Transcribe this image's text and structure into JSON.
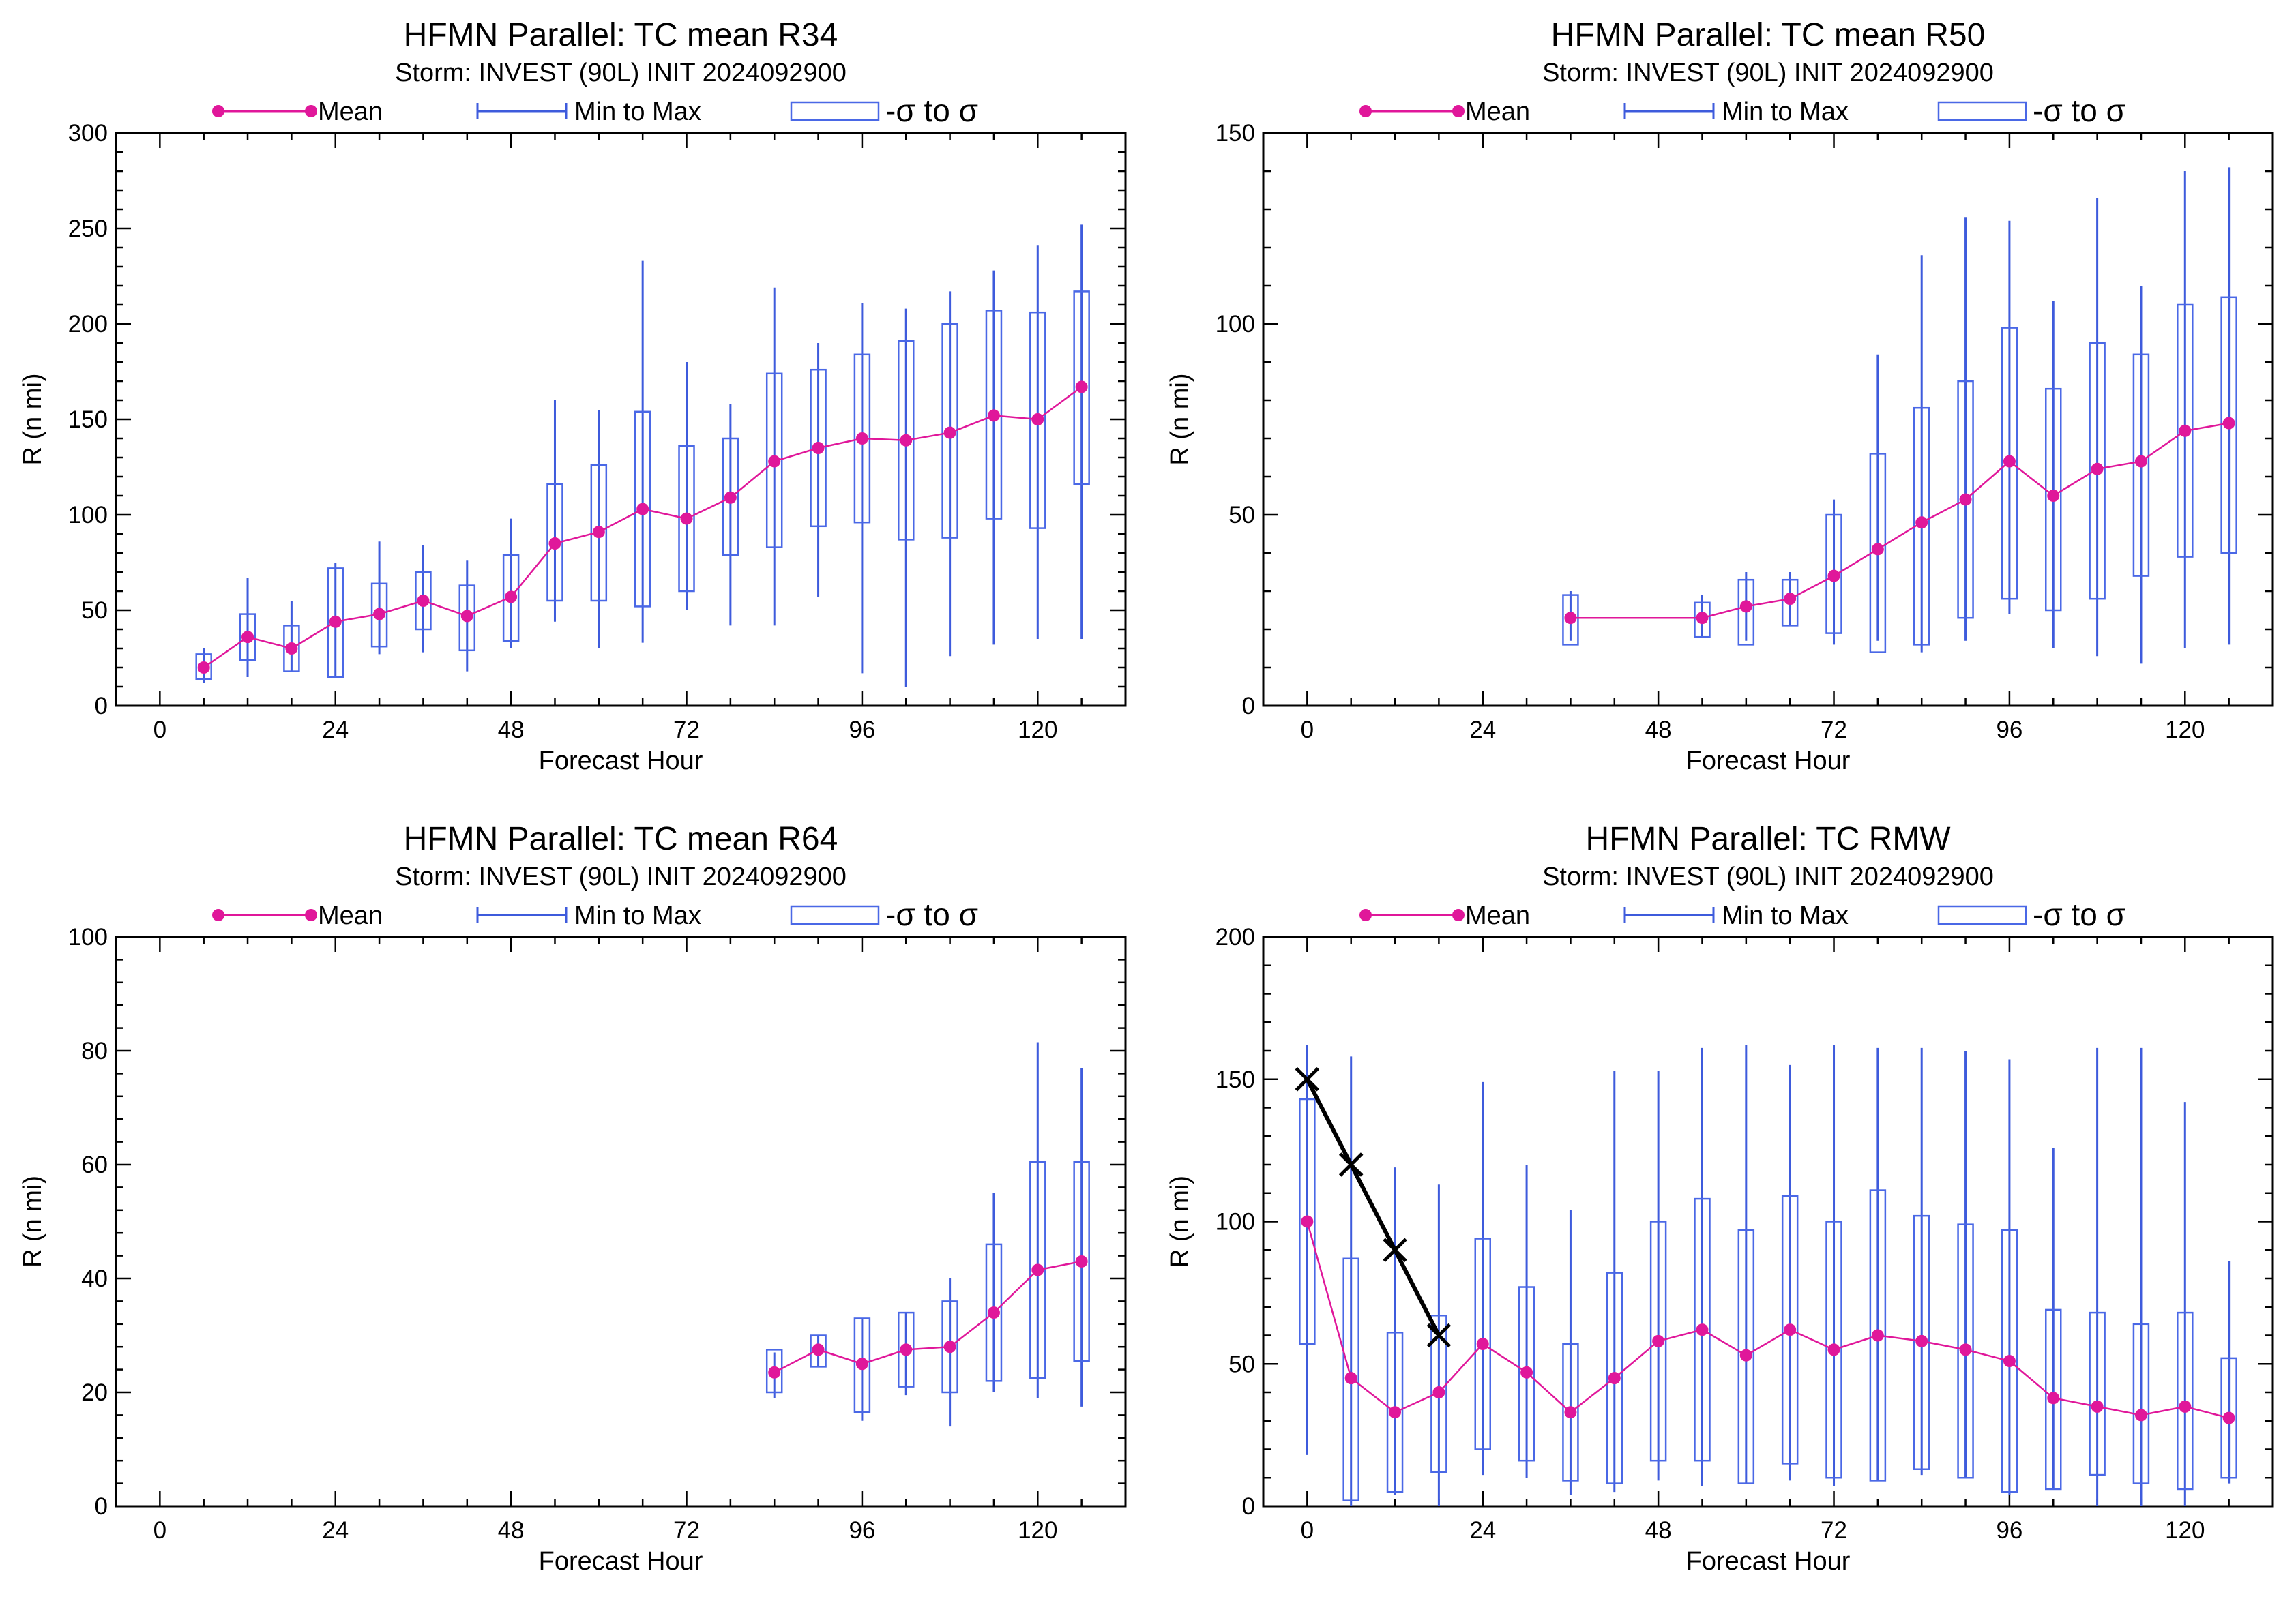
{
  "colors": {
    "mean": "#e0179a",
    "minmax": "#3e5bdc",
    "box": "#4a68e6",
    "best_track": "#000000",
    "frame": "#000000",
    "background": "#ffffff"
  },
  "legend_labels": {
    "mean": "Mean",
    "minmax": "Min to Max",
    "sigma": "-σ to σ"
  },
  "chart_data": [
    {
      "type": "box",
      "title": "HFMN Parallel: TC mean R34",
      "subtitle": "Storm: INVEST (90L) INIT 2024092900",
      "xlabel": "Forecast Hour",
      "ylabel": "R (n mi)",
      "xlim": [
        -6,
        132
      ],
      "ylim": [
        0,
        300
      ],
      "xticks": [
        0,
        24,
        48,
        72,
        96,
        120
      ],
      "yticks": [
        0,
        50,
        100,
        150,
        200,
        250,
        300
      ],
      "grid": false,
      "legend": "top",
      "points": [
        {
          "x": 6,
          "mean": 20,
          "min": 12,
          "max": 30,
          "sd_lo": 14,
          "sd_hi": 27
        },
        {
          "x": 12,
          "mean": 36,
          "min": 15,
          "max": 67,
          "sd_lo": 24,
          "sd_hi": 48
        },
        {
          "x": 18,
          "mean": 30,
          "min": 18,
          "max": 55,
          "sd_lo": 18,
          "sd_hi": 42
        },
        {
          "x": 24,
          "mean": 44,
          "min": 15,
          "max": 75,
          "sd_lo": 15,
          "sd_hi": 72
        },
        {
          "x": 30,
          "mean": 48,
          "min": 27,
          "max": 86,
          "sd_lo": 31,
          "sd_hi": 64
        },
        {
          "x": 36,
          "mean": 55,
          "min": 28,
          "max": 84,
          "sd_lo": 40,
          "sd_hi": 70
        },
        {
          "x": 42,
          "mean": 47,
          "min": 18,
          "max": 76,
          "sd_lo": 29,
          "sd_hi": 63
        },
        {
          "x": 48,
          "mean": 57,
          "min": 30,
          "max": 98,
          "sd_lo": 34,
          "sd_hi": 79
        },
        {
          "x": 54,
          "mean": 85,
          "min": 44,
          "max": 160,
          "sd_lo": 55,
          "sd_hi": 116
        },
        {
          "x": 60,
          "mean": 91,
          "min": 30,
          "max": 155,
          "sd_lo": 55,
          "sd_hi": 126
        },
        {
          "x": 66,
          "mean": 103,
          "min": 33,
          "max": 233,
          "sd_lo": 52,
          "sd_hi": 154
        },
        {
          "x": 72,
          "mean": 98,
          "min": 50,
          "max": 180,
          "sd_lo": 60,
          "sd_hi": 136
        },
        {
          "x": 78,
          "mean": 109,
          "min": 42,
          "max": 158,
          "sd_lo": 79,
          "sd_hi": 140
        },
        {
          "x": 84,
          "mean": 128,
          "min": 42,
          "max": 219,
          "sd_lo": 83,
          "sd_hi": 174
        },
        {
          "x": 90,
          "mean": 135,
          "min": 57,
          "max": 190,
          "sd_lo": 94,
          "sd_hi": 176
        },
        {
          "x": 96,
          "mean": 140,
          "min": 17,
          "max": 211,
          "sd_lo": 96,
          "sd_hi": 184
        },
        {
          "x": 102,
          "mean": 139,
          "min": 10,
          "max": 208,
          "sd_lo": 87,
          "sd_hi": 191
        },
        {
          "x": 108,
          "mean": 143,
          "min": 26,
          "max": 217,
          "sd_lo": 88,
          "sd_hi": 200
        },
        {
          "x": 114,
          "mean": 152,
          "min": 32,
          "max": 228,
          "sd_lo": 98,
          "sd_hi": 207
        },
        {
          "x": 120,
          "mean": 150,
          "min": 35,
          "max": 241,
          "sd_lo": 93,
          "sd_hi": 206
        },
        {
          "x": 126,
          "mean": 167,
          "min": 35,
          "max": 252,
          "sd_lo": 116,
          "sd_hi": 217
        }
      ]
    },
    {
      "type": "box",
      "title": "HFMN Parallel: TC mean R50",
      "subtitle": "Storm: INVEST (90L) INIT 2024092900",
      "xlabel": "Forecast Hour",
      "ylabel": "R (n mi)",
      "xlim": [
        -6,
        132
      ],
      "ylim": [
        0,
        150
      ],
      "xticks": [
        0,
        24,
        48,
        72,
        96,
        120
      ],
      "yticks": [
        0,
        50,
        100,
        150
      ],
      "grid": false,
      "legend": "top",
      "points": [
        {
          "x": 36,
          "mean": 23,
          "min": 17,
          "max": 30,
          "sd_lo": 16,
          "sd_hi": 29
        },
        {
          "x": 54,
          "mean": 23,
          "min": 18,
          "max": 29,
          "sd_lo": 18,
          "sd_hi": 27
        },
        {
          "x": 60,
          "mean": 26,
          "min": 17,
          "max": 35,
          "sd_lo": 16,
          "sd_hi": 33
        },
        {
          "x": 66,
          "mean": 28,
          "min": 21,
          "max": 35,
          "sd_lo": 21,
          "sd_hi": 33
        },
        {
          "x": 72,
          "mean": 34,
          "min": 16,
          "max": 54,
          "sd_lo": 19,
          "sd_hi": 50
        },
        {
          "x": 78,
          "mean": 41,
          "min": 17,
          "max": 92,
          "sd_lo": 14,
          "sd_hi": 66
        },
        {
          "x": 84,
          "mean": 48,
          "min": 14,
          "max": 118,
          "sd_lo": 16,
          "sd_hi": 78
        },
        {
          "x": 90,
          "mean": 54,
          "min": 17,
          "max": 128,
          "sd_lo": 23,
          "sd_hi": 85
        },
        {
          "x": 96,
          "mean": 64,
          "min": 24,
          "max": 127,
          "sd_lo": 28,
          "sd_hi": 99
        },
        {
          "x": 102,
          "mean": 55,
          "min": 15,
          "max": 106,
          "sd_lo": 25,
          "sd_hi": 83
        },
        {
          "x": 108,
          "mean": 62,
          "min": 13,
          "max": 133,
          "sd_lo": 28,
          "sd_hi": 95
        },
        {
          "x": 114,
          "mean": 64,
          "min": 11,
          "max": 110,
          "sd_lo": 34,
          "sd_hi": 92
        },
        {
          "x": 120,
          "mean": 72,
          "min": 15,
          "max": 140,
          "sd_lo": 39,
          "sd_hi": 105
        },
        {
          "x": 126,
          "mean": 74,
          "min": 16,
          "max": 141,
          "sd_lo": 40,
          "sd_hi": 107
        }
      ]
    },
    {
      "type": "box",
      "title": "HFMN Parallel: TC mean R64",
      "subtitle": "Storm: INVEST (90L) INIT 2024092900",
      "xlabel": "Forecast Hour",
      "ylabel": "R (n mi)",
      "xlim": [
        -6,
        132
      ],
      "ylim": [
        0,
        100
      ],
      "xticks": [
        0,
        24,
        48,
        72,
        96,
        120
      ],
      "yticks": [
        0,
        20,
        40,
        60,
        80,
        100
      ],
      "grid": false,
      "legend": "top",
      "points": [
        {
          "x": 84,
          "mean": 23.5,
          "min": 19,
          "max": 27,
          "sd_lo": 20,
          "sd_hi": 27.5
        },
        {
          "x": 90,
          "mean": 27.5,
          "min": 24.5,
          "max": 30,
          "sd_lo": 24.5,
          "sd_hi": 30
        },
        {
          "x": 96,
          "mean": 25,
          "min": 15,
          "max": 33,
          "sd_lo": 16.5,
          "sd_hi": 33
        },
        {
          "x": 102,
          "mean": 27.5,
          "min": 19.5,
          "max": 34,
          "sd_lo": 21,
          "sd_hi": 34
        },
        {
          "x": 108,
          "mean": 28,
          "min": 14,
          "max": 40,
          "sd_lo": 20,
          "sd_hi": 36
        },
        {
          "x": 114,
          "mean": 34,
          "min": 20,
          "max": 55,
          "sd_lo": 22,
          "sd_hi": 46
        },
        {
          "x": 120,
          "mean": 41.5,
          "min": 19,
          "max": 81.5,
          "sd_lo": 22.5,
          "sd_hi": 60.5
        },
        {
          "x": 126,
          "mean": 43,
          "min": 17.5,
          "max": 77,
          "sd_lo": 25.5,
          "sd_hi": 60.5
        }
      ]
    },
    {
      "type": "box",
      "title": "HFMN Parallel: TC RMW",
      "subtitle": "Storm: INVEST (90L) INIT 2024092900",
      "xlabel": "Forecast Hour",
      "ylabel": "R (n mi)",
      "xlim": [
        -6,
        132
      ],
      "ylim": [
        0,
        200
      ],
      "xticks": [
        0,
        24,
        48,
        72,
        96,
        120
      ],
      "yticks": [
        0,
        50,
        100,
        150,
        200
      ],
      "grid": false,
      "legend": "top",
      "points": [
        {
          "x": 0,
          "mean": 100,
          "min": 18,
          "max": 162,
          "sd_lo": 57,
          "sd_hi": 143
        },
        {
          "x": 6,
          "mean": 45,
          "min": 0,
          "max": 158,
          "sd_lo": 2,
          "sd_hi": 87
        },
        {
          "x": 12,
          "mean": 33,
          "min": 4,
          "max": 119,
          "sd_lo": 5,
          "sd_hi": 61
        },
        {
          "x": 18,
          "mean": 40,
          "min": 0,
          "max": 113,
          "sd_lo": 12,
          "sd_hi": 67
        },
        {
          "x": 24,
          "mean": 57,
          "min": 11,
          "max": 149,
          "sd_lo": 20,
          "sd_hi": 94
        },
        {
          "x": 30,
          "mean": 47,
          "min": 10,
          "max": 120,
          "sd_lo": 16,
          "sd_hi": 77
        },
        {
          "x": 36,
          "mean": 33,
          "min": 4,
          "max": 104,
          "sd_lo": 9,
          "sd_hi": 57
        },
        {
          "x": 42,
          "mean": 45,
          "min": 5,
          "max": 153,
          "sd_lo": 8,
          "sd_hi": 82
        },
        {
          "x": 48,
          "mean": 58,
          "min": 9,
          "max": 153,
          "sd_lo": 16,
          "sd_hi": 100
        },
        {
          "x": 54,
          "mean": 62,
          "min": 7,
          "max": 161,
          "sd_lo": 16,
          "sd_hi": 108
        },
        {
          "x": 60,
          "mean": 53,
          "min": 8,
          "max": 162,
          "sd_lo": 8,
          "sd_hi": 97
        },
        {
          "x": 66,
          "mean": 62,
          "min": 9,
          "max": 155,
          "sd_lo": 15,
          "sd_hi": 109
        },
        {
          "x": 72,
          "mean": 55,
          "min": 7,
          "max": 162,
          "sd_lo": 10,
          "sd_hi": 100
        },
        {
          "x": 78,
          "mean": 60,
          "min": 9,
          "max": 161,
          "sd_lo": 9,
          "sd_hi": 111
        },
        {
          "x": 84,
          "mean": 58,
          "min": 11,
          "max": 161,
          "sd_lo": 13,
          "sd_hi": 102
        },
        {
          "x": 90,
          "mean": 55,
          "min": 10,
          "max": 160,
          "sd_lo": 10,
          "sd_hi": 99
        },
        {
          "x": 96,
          "mean": 51,
          "min": 4,
          "max": 157,
          "sd_lo": 5,
          "sd_hi": 97
        },
        {
          "x": 102,
          "mean": 38,
          "min": 6,
          "max": 126,
          "sd_lo": 6,
          "sd_hi": 69
        },
        {
          "x": 108,
          "mean": 35,
          "min": 0,
          "max": 161,
          "sd_lo": 11,
          "sd_hi": 68
        },
        {
          "x": 114,
          "mean": 32,
          "min": 0,
          "max": 161,
          "sd_lo": 8,
          "sd_hi": 64
        },
        {
          "x": 120,
          "mean": 35,
          "min": 0,
          "max": 142,
          "sd_lo": 6,
          "sd_hi": 68
        },
        {
          "x": 126,
          "mean": 31,
          "min": 8,
          "max": 86,
          "sd_lo": 10,
          "sd_hi": 52
        }
      ],
      "best_track": [
        {
          "x": 0,
          "y": 150
        },
        {
          "x": 6,
          "y": 120
        },
        {
          "x": 12,
          "y": 90
        },
        {
          "x": 18,
          "y": 60
        }
      ]
    }
  ]
}
